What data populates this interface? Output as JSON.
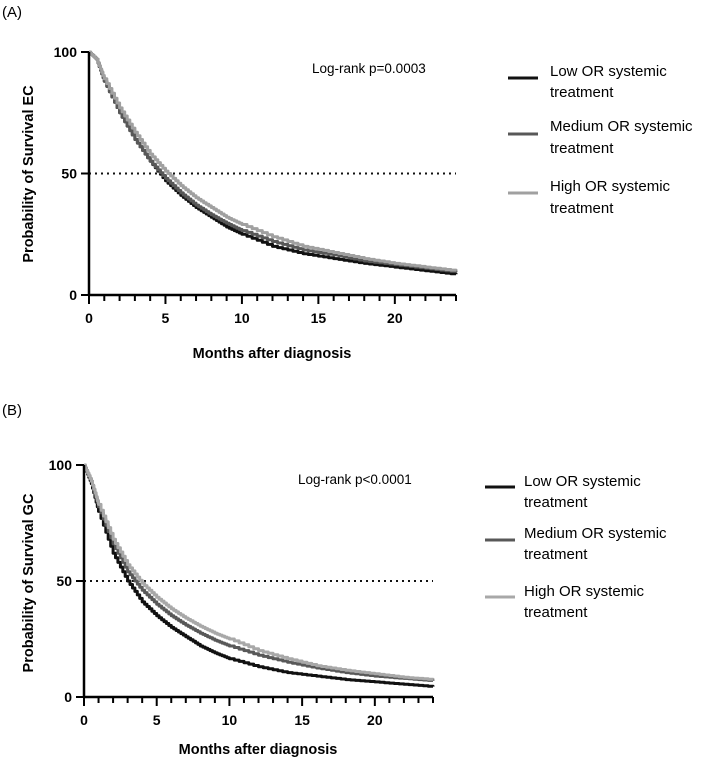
{
  "chart_data": [
    {
      "type": "line",
      "panel_label": "(A)",
      "ylabel": "Probability of Survival EC",
      "xlabel": "Months after diagnosis",
      "xlim": [
        0,
        24
      ],
      "ylim": [
        0,
        100
      ],
      "xticks": [
        0,
        5,
        10,
        15,
        20
      ],
      "yticks": [
        0,
        50,
        100
      ],
      "reference_line": {
        "y": 50,
        "style": "dotted"
      },
      "annotation": "Log-rank p=0.0003",
      "legend_position": "right",
      "series": [
        {
          "name_lines": [
            "Low OR systemic",
            "treatment"
          ],
          "color": "#111111",
          "x": [
            0,
            0.5,
            1,
            2,
            3,
            4,
            5,
            6,
            7,
            8,
            9,
            10,
            12,
            14,
            16,
            18,
            20,
            22,
            24
          ],
          "y": [
            100,
            97,
            88,
            75,
            64,
            55,
            47,
            41,
            36,
            32,
            28,
            25,
            20,
            17,
            15,
            13,
            11.5,
            10,
            8.5
          ]
        },
        {
          "name_lines": [
            "Medium OR systemic",
            "treatment"
          ],
          "color": "#585858",
          "x": [
            0,
            0.5,
            1,
            2,
            3,
            4,
            5,
            6,
            7,
            8,
            9,
            10,
            12,
            14,
            16,
            18,
            20,
            22,
            24
          ],
          "y": [
            100,
            97,
            88,
            75,
            64,
            55,
            48,
            42,
            37,
            33,
            29.5,
            26.5,
            22,
            18.5,
            16.5,
            14,
            12.5,
            11,
            9.5
          ]
        },
        {
          "name_lines": [
            "High OR systemic",
            "treatment"
          ],
          "color": "#a0a0a0",
          "x": [
            0,
            0.5,
            1,
            2,
            3,
            4,
            5,
            6,
            7,
            8,
            9,
            10,
            12,
            14,
            16,
            18,
            20,
            22,
            24
          ],
          "y": [
            100,
            97,
            89,
            77,
            67,
            58,
            51,
            45,
            40,
            36,
            32,
            29,
            24,
            20,
            17.5,
            15,
            13,
            11.5,
            10
          ]
        }
      ]
    },
    {
      "type": "line",
      "panel_label": "(B)",
      "ylabel": "Probability of Survival GC",
      "xlabel": "Months after diagnosis",
      "xlim": [
        0,
        24
      ],
      "ylim": [
        0,
        100
      ],
      "xticks": [
        0,
        5,
        10,
        15,
        20
      ],
      "yticks": [
        0,
        50,
        100
      ],
      "reference_line": {
        "y": 50,
        "style": "dotted"
      },
      "annotation": "Log-rank p<0.0001",
      "legend_position": "right",
      "series": [
        {
          "name_lines": [
            "Low OR systemic",
            "treatment"
          ],
          "color": "#111111",
          "x": [
            0,
            0.5,
            1,
            2,
            3,
            4,
            5,
            6,
            7,
            8,
            9,
            10,
            12,
            14,
            16,
            18,
            20,
            22,
            24
          ],
          "y": [
            100,
            92,
            80,
            62,
            50,
            41,
            35,
            30,
            26,
            22,
            19,
            16.5,
            13,
            10.5,
            9,
            7.5,
            6.5,
            5.5,
            4.5
          ]
        },
        {
          "name_lines": [
            "Medium OR systemic",
            "treatment"
          ],
          "color": "#585858",
          "x": [
            0,
            0.5,
            1,
            2,
            3,
            4,
            5,
            6,
            7,
            8,
            9,
            10,
            12,
            14,
            16,
            18,
            20,
            22,
            24
          ],
          "y": [
            100,
            93,
            82,
            66,
            54,
            46,
            40,
            35,
            31,
            27.5,
            24.5,
            22,
            18,
            15,
            12.5,
            10.5,
            9,
            8,
            7
          ]
        },
        {
          "name_lines": [
            "High OR systemic",
            "treatment"
          ],
          "color": "#a8a8a8",
          "x": [
            0,
            0.5,
            1,
            2,
            3,
            4,
            5,
            6,
            7,
            8,
            9,
            10,
            12,
            14,
            16,
            18,
            20,
            22,
            24
          ],
          "y": [
            100,
            93,
            83,
            68,
            57,
            49,
            43,
            38,
            34,
            30.5,
            27.5,
            25,
            20,
            16.5,
            13.5,
            11.5,
            10,
            8.5,
            7.5
          ]
        }
      ]
    }
  ]
}
